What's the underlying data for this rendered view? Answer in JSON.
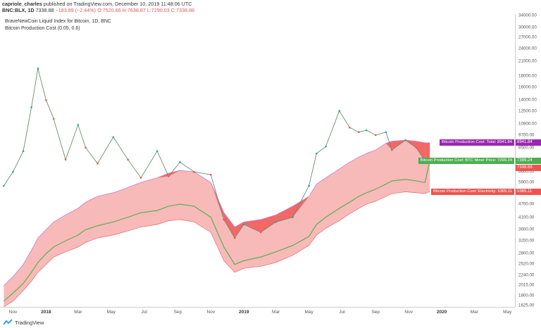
{
  "header": {
    "publisher": "capriole_charles",
    "published_text": "published on TradingView.com, December 10, 2019 11:48:06 UTC",
    "symbol": "BNC:BLX, 1D",
    "last": "7338.88",
    "change": "−183.89 (−2.44%)",
    "o": "O:7520.66",
    "h": "H:7638.87",
    "l": "L:7290.03",
    "c": "C:7338.88"
  },
  "legend": {
    "series_title": "BraveNewCoin Liquid Index for Bitcoin, 1D, BNC",
    "indicator_title": "Bitcoin Production Cost (0.05, 0.6)"
  },
  "price_axis": {
    "ticks": [
      "34000.00",
      "30000.00",
      "27000.00",
      "24000.00",
      "21000.00",
      "18000.00",
      "16000.00",
      "14000.00",
      "12500.00",
      "10900.00",
      "9700.00",
      "8500.00",
      "7500.00",
      "6600.00",
      "5900.00",
      "5300.00",
      "4700.00",
      "4100.00",
      "3600.00",
      "3200.00",
      "2800.00",
      "2520.00",
      "2240.00",
      "2015.00",
      "1800.00",
      "1625.00"
    ]
  },
  "time_axis": {
    "ticks": [
      {
        "label": "Nov",
        "bold": false
      },
      {
        "label": "2018",
        "bold": true
      },
      {
        "label": "Mar",
        "bold": false
      },
      {
        "label": "May",
        "bold": false
      },
      {
        "label": "Jul",
        "bold": false
      },
      {
        "label": "Sep",
        "bold": false
      },
      {
        "label": "Nov",
        "bold": false
      },
      {
        "label": "2019",
        "bold": true
      },
      {
        "label": "Mar",
        "bold": false
      },
      {
        "label": "May",
        "bold": false
      },
      {
        "label": "Jul",
        "bold": false
      },
      {
        "label": "Sep",
        "bold": false
      },
      {
        "label": "Nov",
        "bold": false
      },
      {
        "label": "2020",
        "bold": true
      },
      {
        "label": "Mar",
        "bold": false
      },
      {
        "label": "May",
        "bold": false
      }
    ]
  },
  "tags": {
    "total": {
      "label": "Bitcoin Production Cost: Total",
      "value": "8941.84",
      "color": "#9c27b0"
    },
    "miner": {
      "label": "Bitcoin Production Cost: BTC Miner Price",
      "value": "7399.24",
      "color": "#4caf50"
    },
    "last": {
      "value": "7338.88",
      "color": "#ef5350"
    },
    "electricity": {
      "label": "Bitcoin Production Cost: Electricity",
      "value": "5365.11",
      "color": "#ef5350"
    }
  },
  "colors": {
    "band_fill": "#f8b9b9",
    "total_line": "#c77dd1",
    "electricity_line": "#e05a5a",
    "miner_line": "#4caf50",
    "below_cost_fill": "#f25858",
    "candle_up": "#26a69a",
    "candle_down": "#ef5350"
  },
  "footer": {
    "brand": "TradingView"
  },
  "chart_data": {
    "type": "line",
    "title": "BraveNewCoin Liquid Index for Bitcoin, 1D, BNC",
    "x": [
      "2017-10-15",
      "2017-11-01",
      "2017-11-20",
      "2017-12-05",
      "2017-12-17",
      "2018-01-01",
      "2018-01-15",
      "2018-02-06",
      "2018-03-01",
      "2018-03-15",
      "2018-04-06",
      "2018-05-05",
      "2018-06-01",
      "2018-06-25",
      "2018-07-25",
      "2018-08-15",
      "2018-09-05",
      "2018-10-01",
      "2018-11-01",
      "2018-11-25",
      "2018-12-15",
      "2019-01-01",
      "2019-02-01",
      "2019-03-01",
      "2019-04-01",
      "2019-05-01",
      "2019-05-15",
      "2019-06-01",
      "2019-06-26",
      "2019-07-15",
      "2019-08-01",
      "2019-08-15",
      "2019-09-01",
      "2019-09-20",
      "2019-10-01",
      "2019-10-26",
      "2019-11-15",
      "2019-12-01",
      "2019-12-10"
    ],
    "series": [
      {
        "name": "BraveNewCoin Liquid Index for Bitcoin",
        "values": [
          5700,
          6600,
          8200,
          13000,
          19500,
          14000,
          11500,
          7500,
          10800,
          8500,
          7200,
          9500,
          7500,
          6200,
          8200,
          6300,
          7300,
          6600,
          6400,
          4000,
          3300,
          3800,
          3500,
          3900,
          4100,
          5700,
          8000,
          8600,
          12500,
          10500,
          10000,
          10200,
          9700,
          10000,
          8300,
          9200,
          8500,
          7400,
          7338.88
        ]
      },
      {
        "name": "Bitcoin Production Cost: Total",
        "values": [
          2000,
          2200,
          2500,
          2900,
          3300,
          3600,
          3900,
          4200,
          4500,
          4800,
          5100,
          5300,
          5600,
          5900,
          6200,
          6500,
          6700,
          6600,
          5900,
          4300,
          3700,
          3900,
          4000,
          4200,
          4600,
          5100,
          5800,
          6200,
          6800,
          7300,
          7700,
          8000,
          8300,
          8900,
          9100,
          9200,
          9100,
          8950,
          8941.84
        ]
      },
      {
        "name": "Bitcoin Production Cost: BTC Miner Price",
        "values": [
          1700,
          1850,
          2050,
          2300,
          2550,
          2800,
          3000,
          3200,
          3400,
          3600,
          3750,
          3900,
          4100,
          4300,
          4400,
          4600,
          4700,
          4600,
          4100,
          3000,
          2500,
          2600,
          2700,
          2850,
          3050,
          3350,
          3800,
          4100,
          4500,
          4800,
          5100,
          5300,
          5500,
          5800,
          6000,
          6100,
          6000,
          5900,
          7399.24
        ]
      },
      {
        "name": "Bitcoin Production Cost: Electricity",
        "values": [
          1600,
          1700,
          1900,
          2100,
          2300,
          2500,
          2700,
          2850,
          3000,
          3150,
          3300,
          3400,
          3550,
          3700,
          3800,
          3950,
          4000,
          3900,
          3500,
          2600,
          2300,
          2400,
          2450,
          2550,
          2750,
          3050,
          3400,
          3650,
          3950,
          4250,
          4500,
          4700,
          4850,
          5100,
          5250,
          5350,
          5300,
          5250,
          5365.11
        ]
      }
    ],
    "ylim": [
      1625,
      34000
    ],
    "y_scale": "log",
    "grid": false,
    "legend_position": "top-left"
  }
}
